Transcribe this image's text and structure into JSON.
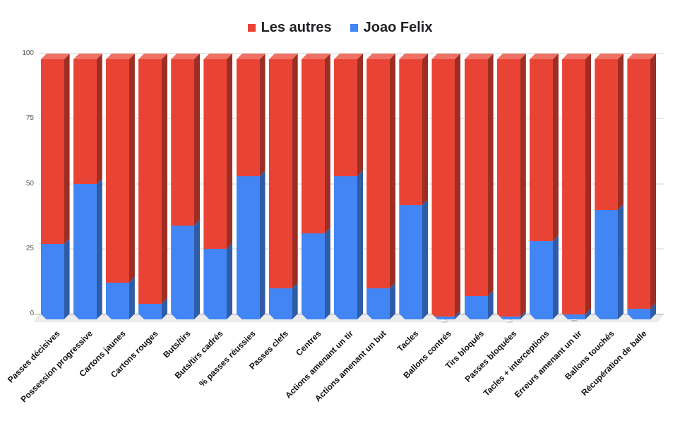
{
  "legend": {
    "items": [
      {
        "label": "Les autres",
        "swatch_color": "#E94335"
      },
      {
        "label": "Joao Felix",
        "swatch_color": "#4285F4"
      }
    ]
  },
  "chart_data": {
    "type": "bar",
    "variant": "stacked-3d-column",
    "title": "",
    "xlabel": "",
    "ylabel": "",
    "ylim": [
      0,
      100
    ],
    "yticks": [
      0,
      25,
      50,
      75,
      100
    ],
    "grid": true,
    "legend_position": "top",
    "label_color": "#FFFFFF",
    "grid_color": "#E9E9E9",
    "zero_line_color": "#9E9E9E",
    "floor_color": "#ECECEC",
    "categories": [
      "Passes décisives",
      "Possession progressive",
      "Cartons jaunes",
      "Cartons rouges",
      "Buts/tirs",
      "Buts/tirs cadrés",
      "% passes réussies",
      "Passes clefs",
      "Centres",
      "Actions amenant un tir",
      "Actions amenant un but",
      "Tacles",
      "Ballons contrés",
      "Tirs bloqués",
      "Passes bloquées",
      "Tacles + interceptions",
      "Erreurs amenant un tir",
      "Ballons touchés",
      "Récupération de balle"
    ],
    "series": [
      {
        "name": "Les autres",
        "color": "#E94335",
        "color_top": "#EE7164",
        "color_side": "#9D2E24",
        "stack_order": "top",
        "values": [
          71,
          48,
          86,
          94,
          64,
          73,
          45,
          88,
          67,
          45,
          88,
          56,
          99,
          91,
          99,
          70,
          98,
          58,
          96
        ]
      },
      {
        "name": "Joao Felix",
        "color": "#4285F4",
        "color_side": "#2F5CA6",
        "stack_order": "bottom",
        "values": [
          29,
          52,
          14,
          6,
          36,
          27,
          55,
          12,
          33,
          55,
          12,
          44,
          1,
          9,
          1,
          30,
          2,
          42,
          4
        ]
      }
    ]
  }
}
